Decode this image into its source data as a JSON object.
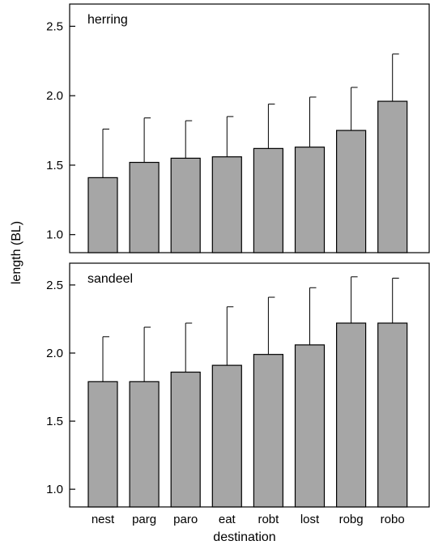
{
  "chart_data": [
    {
      "type": "bar",
      "panel_label": "herring",
      "categories": [
        "nest",
        "parg",
        "paro",
        "eat",
        "robt",
        "lost",
        "robg",
        "robo"
      ],
      "values": [
        1.41,
        1.52,
        1.55,
        1.56,
        1.62,
        1.63,
        1.75,
        1.96
      ],
      "error_upper": [
        1.76,
        1.84,
        1.82,
        1.85,
        1.94,
        1.99,
        2.06,
        2.3
      ],
      "ylim": [
        0.87,
        2.66
      ],
      "yticks": [
        "1.0",
        "1.5",
        "2.0",
        "2.5"
      ],
      "bar_color": "#a6a6a6"
    },
    {
      "type": "bar",
      "panel_label": "sandeel",
      "categories": [
        "nest",
        "parg",
        "paro",
        "eat",
        "robt",
        "lost",
        "robg",
        "robo"
      ],
      "values": [
        1.79,
        1.79,
        1.86,
        1.91,
        1.99,
        2.06,
        2.22,
        2.22
      ],
      "error_upper": [
        2.12,
        2.19,
        2.22,
        2.34,
        2.41,
        2.48,
        2.56,
        2.55
      ],
      "ylim": [
        0.87,
        2.66
      ],
      "yticks": [
        "1.0",
        "1.5",
        "2.0",
        "2.5"
      ],
      "bar_color": "#a6a6a6"
    }
  ],
  "axes": {
    "ylabel": "length (BL)",
    "xlabel": "destination"
  }
}
